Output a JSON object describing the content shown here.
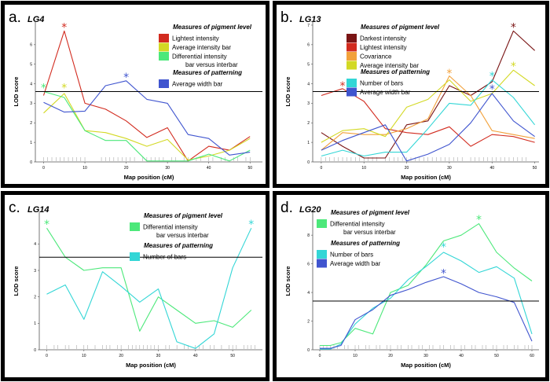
{
  "chart_data": [
    {
      "type": "line",
      "panel_label": "a.",
      "title": "LG4",
      "xlabel": "Map position (cM)",
      "ylabel": "LOD score",
      "xlim": [
        -2,
        53
      ],
      "ylim": [
        0,
        7.2
      ],
      "xticks": [
        0,
        10,
        20,
        30,
        40,
        50
      ],
      "yticks": [
        0,
        1,
        2,
        3,
        4,
        5,
        6
      ],
      "threshold": 3.6,
      "markers": [
        0,
        1,
        2,
        3,
        4,
        5,
        6,
        7,
        8,
        9,
        10,
        14,
        15,
        16,
        17,
        18,
        19,
        20,
        21,
        22,
        24,
        25,
        26,
        27,
        28,
        29,
        31,
        32,
        34,
        35,
        37,
        38,
        40,
        41,
        43,
        44,
        46,
        47,
        49,
        50
      ],
      "legend_groups": [
        {
          "heading": "Measures of pigment level",
          "entries": [
            {
              "label": "Lightest intensity",
              "color": "#d22b1f"
            },
            {
              "label": "Average intensity bar",
              "color": "#d3d924"
            },
            {
              "label": "Differential intensity",
              "label2": "bar versus interbar",
              "color": "#4ce87a"
            }
          ]
        },
        {
          "heading": "Measures of patterning",
          "entries": [
            {
              "label": "Average width bar",
              "color": "#4055cf"
            }
          ]
        }
      ],
      "series": [
        {
          "name": "Lightest intensity",
          "color": "#d22b1f",
          "x": [
            0,
            5,
            10,
            15,
            20,
            25,
            30,
            35,
            40,
            45,
            50
          ],
          "y": [
            3.4,
            6.7,
            3.0,
            2.7,
            2.1,
            1.25,
            1.75,
            0.05,
            0.8,
            0.6,
            1.3
          ]
        },
        {
          "name": "Average intensity bar",
          "color": "#d3d924",
          "x": [
            0,
            5,
            10,
            15,
            20,
            25,
            30,
            35,
            40,
            45,
            50
          ],
          "y": [
            2.5,
            3.5,
            1.6,
            1.5,
            1.2,
            0.8,
            1.15,
            0.1,
            0.3,
            0.6,
            1.2
          ]
        },
        {
          "name": "Differential intensity bar versus interbar",
          "color": "#4ce87a",
          "x": [
            0,
            5,
            10,
            15,
            20,
            25,
            30,
            35,
            40,
            45,
            50
          ],
          "y": [
            3.6,
            3.3,
            1.6,
            1.1,
            1.1,
            0.05,
            0.05,
            0.05,
            0.4,
            0.05,
            0.6
          ]
        },
        {
          "name": "Average width bar",
          "color": "#4055cf",
          "x": [
            0,
            5,
            10,
            15,
            20,
            25,
            30,
            35,
            40,
            45,
            50
          ],
          "y": [
            3.05,
            2.55,
            2.6,
            3.9,
            4.15,
            3.2,
            3.0,
            1.4,
            1.2,
            0.35,
            0.5
          ]
        }
      ],
      "stars": [
        {
          "x": 0,
          "y": 3.8,
          "color": "#4ce87a"
        },
        {
          "x": 5,
          "y": 6.9,
          "color": "#d22b1f"
        },
        {
          "x": 5,
          "y": 3.8,
          "color": "#d3d924"
        },
        {
          "x": 20,
          "y": 4.35,
          "color": "#4055cf"
        }
      ]
    },
    {
      "type": "line",
      "panel_label": "b.",
      "title": "LG13",
      "xlabel": "Map position (cM)",
      "ylabel": "LOD score",
      "xlim": [
        -2,
        51
      ],
      "ylim": [
        0,
        7.2
      ],
      "xticks": [
        0,
        10,
        20,
        30,
        40,
        50
      ],
      "yticks": [
        0,
        1,
        2,
        3,
        4,
        5,
        6,
        7
      ],
      "threshold": 3.6,
      "markers": [
        0,
        1,
        2,
        3,
        4,
        5,
        6,
        7,
        8,
        9,
        10,
        11,
        12,
        13,
        15,
        16,
        17,
        18,
        19,
        20,
        21,
        22,
        23,
        24,
        25,
        26,
        27,
        28,
        29,
        30,
        31,
        32,
        33,
        35,
        36,
        37,
        38,
        39,
        40,
        41,
        42,
        43,
        44,
        45,
        46,
        47,
        48
      ],
      "legend_groups": [
        {
          "heading": "Measures of pigment level",
          "entries": [
            {
              "label": "Darkest intensity",
              "color": "#7a1515"
            },
            {
              "label": "Lightest intensity",
              "color": "#d22b1f"
            },
            {
              "label": "Covariance",
              "color": "#f2a13a"
            },
            {
              "label": "Average intensity bar",
              "color": "#d3d924"
            }
          ]
        },
        {
          "heading": "Measures of patterning",
          "entries": [
            {
              "label": "Number of bars",
              "color": "#33d6d6"
            },
            {
              "label": "Average width bar",
              "color": "#4055cf"
            }
          ]
        }
      ],
      "series": [
        {
          "name": "Darkest intensity",
          "color": "#7a1515",
          "x": [
            0,
            5,
            10,
            15,
            20,
            25,
            30,
            35,
            40,
            45,
            50
          ],
          "y": [
            1.5,
            0.8,
            0.2,
            0.2,
            1.9,
            2.1,
            3.9,
            3.4,
            4.1,
            6.7,
            5.7
          ]
        },
        {
          "name": "Lightest intensity",
          "color": "#d22b1f",
          "x": [
            0,
            5,
            10,
            15,
            20,
            25,
            30,
            35,
            40,
            45,
            50
          ],
          "y": [
            3.4,
            3.75,
            3.1,
            1.7,
            1.5,
            1.4,
            1.8,
            0.8,
            1.4,
            1.3,
            1.0
          ]
        },
        {
          "name": "Covariance",
          "color": "#f2a13a",
          "x": [
            0,
            5,
            10,
            15,
            20,
            25,
            30,
            35,
            40,
            45,
            50
          ],
          "y": [
            0.6,
            1.5,
            1.4,
            1.4,
            1.7,
            2.2,
            4.4,
            3.4,
            1.6,
            1.4,
            1.2
          ]
        },
        {
          "name": "Average intensity bar",
          "color": "#d3d924",
          "x": [
            0,
            5,
            10,
            15,
            20,
            25,
            30,
            35,
            40,
            45,
            50
          ],
          "y": [
            1.0,
            1.6,
            1.7,
            1.3,
            2.8,
            3.2,
            4.2,
            3.1,
            3.5,
            4.7,
            3.9
          ]
        },
        {
          "name": "Number of bars",
          "color": "#33d6d6",
          "x": [
            0,
            5,
            10,
            15,
            20,
            25,
            30,
            35,
            40,
            45,
            50
          ],
          "y": [
            0.3,
            0.6,
            0.3,
            0.5,
            0.5,
            1.7,
            3.0,
            2.9,
            4.2,
            3.3,
            1.9
          ]
        },
        {
          "name": "Average width bar",
          "color": "#4055cf",
          "x": [
            0,
            5,
            10,
            15,
            20,
            25,
            30,
            35,
            40,
            45,
            50
          ],
          "y": [
            0.6,
            1.1,
            1.5,
            1.9,
            0.05,
            0.4,
            0.9,
            2.0,
            3.5,
            2.1,
            1.3
          ]
        }
      ],
      "stars": [
        {
          "x": 5,
          "y": 3.9,
          "color": "#d22b1f"
        },
        {
          "x": 30,
          "y": 4.55,
          "color": "#f2a13a"
        },
        {
          "x": 40,
          "y": 4.4,
          "color": "#33d6d6"
        },
        {
          "x": 40,
          "y": 3.75,
          "color": "#4055cf"
        },
        {
          "x": 45,
          "y": 6.9,
          "color": "#7a1515"
        },
        {
          "x": 45,
          "y": 4.9,
          "color": "#d3d924"
        }
      ]
    },
    {
      "type": "line",
      "panel_label": "c.",
      "title": "LG14",
      "xlabel": "Map position (cM)",
      "ylabel": "LOD score",
      "xlim": [
        -2,
        58
      ],
      "ylim": [
        0,
        5.2
      ],
      "xticks": [
        0,
        10,
        20,
        30,
        40,
        50
      ],
      "yticks": [
        0,
        1,
        2,
        3,
        4
      ],
      "threshold": 3.5,
      "markers": [
        0,
        2,
        3,
        5,
        6,
        8,
        10,
        11,
        13,
        15,
        16,
        17,
        19,
        20,
        22,
        23,
        24,
        25,
        26,
        27,
        28,
        29,
        30,
        32,
        33,
        35,
        37,
        38,
        40,
        41,
        42,
        44,
        45,
        47,
        49,
        50,
        51,
        53,
        54,
        55,
        56
      ],
      "legend_groups": [
        {
          "heading": "Measures of pigment level",
          "entries": [
            {
              "label": "Differential intensity",
              "label2": "bar versus interbar",
              "color": "#4ce87a"
            }
          ]
        },
        {
          "heading": "Measures of patterning",
          "entries": [
            {
              "label": "Number of bars",
              "color": "#33d6d6"
            }
          ]
        }
      ],
      "series": [
        {
          "name": "Differential intensity bar versus interbar",
          "color": "#4ce87a",
          "x": [
            0,
            5,
            10,
            15,
            20,
            25,
            30,
            35,
            40,
            45,
            50,
            55
          ],
          "y": [
            4.6,
            3.5,
            3.0,
            3.1,
            3.1,
            0.7,
            2.0,
            1.5,
            1.0,
            1.1,
            0.85,
            1.5
          ]
        },
        {
          "name": "Number of bars",
          "color": "#33d6d6",
          "x": [
            0,
            5,
            10,
            15,
            20,
            25,
            30,
            35,
            40,
            45,
            50,
            55
          ],
          "y": [
            2.1,
            2.45,
            1.15,
            2.95,
            2.4,
            1.8,
            2.3,
            0.3,
            0.05,
            0.6,
            3.1,
            4.6
          ]
        }
      ],
      "stars": [
        {
          "x": 0,
          "y": 4.75,
          "color": "#4ce87a"
        },
        {
          "x": 55,
          "y": 4.75,
          "color": "#33d6d6"
        }
      ]
    },
    {
      "type": "line",
      "panel_label": "d.",
      "title": "LG20",
      "xlabel": "Map position (cM)",
      "ylabel": "LOD score",
      "xlim": [
        -2,
        62
      ],
      "ylim": [
        0,
        9.6
      ],
      "xticks": [
        0,
        10,
        20,
        30,
        40,
        50,
        60
      ],
      "yticks": [
        0,
        2,
        4,
        6,
        8
      ],
      "threshold": 3.4,
      "markers": [
        0,
        1,
        2,
        3,
        4,
        5,
        7,
        8,
        10,
        11,
        13,
        14,
        16,
        17,
        19,
        20,
        22,
        23,
        25,
        26,
        28,
        29,
        31,
        32,
        34,
        35,
        37,
        38,
        40,
        41,
        43,
        44,
        46,
        47,
        49,
        50,
        52,
        53,
        55,
        56,
        58,
        59,
        60
      ],
      "legend_groups": [
        {
          "heading": "Measures of pigment level",
          "entries": [
            {
              "label": "Differential intensity",
              "label2": "bar versus interbar",
              "color": "#4ce87a"
            }
          ]
        },
        {
          "heading": "Measures of patterning",
          "entries": [
            {
              "label": "Number of bars",
              "color": "#33d6d6"
            },
            {
              "label": "Average width bar",
              "color": "#4055cf"
            }
          ]
        }
      ],
      "series": [
        {
          "name": "Differential intensity bar versus interbar",
          "color": "#4ce87a",
          "x": [
            0,
            3,
            6,
            10,
            15,
            20,
            25,
            30,
            35,
            40,
            45,
            50,
            55,
            60
          ],
          "y": [
            0.3,
            0.3,
            0.5,
            1.5,
            1.1,
            4.0,
            4.5,
            5.9,
            7.6,
            8.0,
            8.8,
            6.8,
            5.7,
            4.8
          ]
        },
        {
          "name": "Number of bars",
          "color": "#33d6d6",
          "x": [
            0,
            3,
            6,
            10,
            15,
            20,
            25,
            30,
            35,
            40,
            45,
            50,
            55,
            60
          ],
          "y": [
            0.05,
            0.05,
            0.4,
            1.8,
            2.9,
            3.6,
            4.9,
            5.8,
            6.8,
            6.2,
            5.4,
            5.8,
            5.0,
            1.1
          ]
        },
        {
          "name": "Average width bar",
          "color": "#4055cf",
          "x": [
            0,
            3,
            6,
            10,
            15,
            20,
            25,
            30,
            35,
            40,
            45,
            50,
            55,
            60
          ],
          "y": [
            0.1,
            0.1,
            0.3,
            2.1,
            2.8,
            3.8,
            4.2,
            4.7,
            5.1,
            4.6,
            4.0,
            3.7,
            3.3,
            0.6
          ]
        }
      ],
      "stars": [
        {
          "x": 35,
          "y": 7.2,
          "color": "#33d6d6"
        },
        {
          "x": 35,
          "y": 5.35,
          "color": "#4055cf"
        },
        {
          "x": 45,
          "y": 9.1,
          "color": "#4ce87a"
        }
      ]
    }
  ]
}
